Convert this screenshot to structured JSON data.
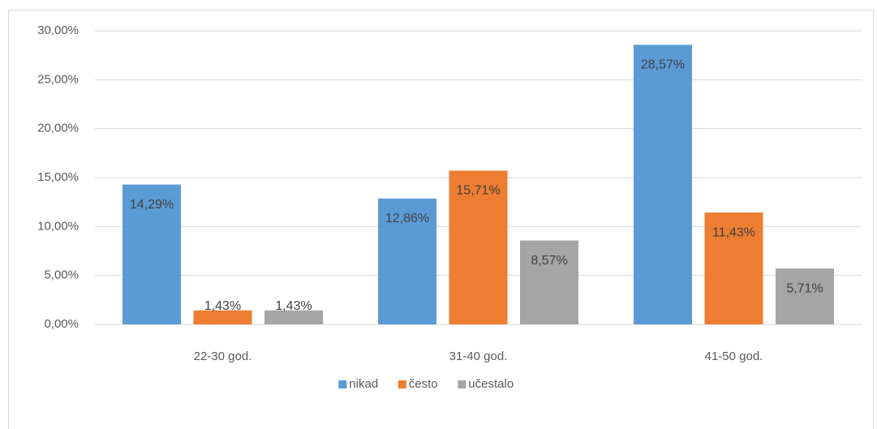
{
  "chart_data": {
    "type": "bar",
    "categories": [
      "22-30 god.",
      "31-40 god.",
      "41-50 god."
    ],
    "series": [
      {
        "name": "nikad",
        "color": "#5b9bd5",
        "values": [
          14.29,
          12.86,
          28.57
        ],
        "value_labels": [
          "14,29%",
          "12,86%",
          "28,57%"
        ]
      },
      {
        "name": "često",
        "color": "#ed7d31",
        "values": [
          1.43,
          15.71,
          11.43
        ],
        "value_labels": [
          "1,43%",
          "15,71%",
          "11,43%"
        ]
      },
      {
        "name": "učestalo",
        "color": "#a5a5a5",
        "values": [
          1.43,
          8.57,
          5.71
        ],
        "value_labels": [
          "1,43%",
          "8,57%",
          "5,71%"
        ]
      }
    ],
    "ylim": [
      0,
      30
    ],
    "yticks": [
      {
        "value": 0,
        "label": "0,00%"
      },
      {
        "value": 5,
        "label": "5,00%"
      },
      {
        "value": 10,
        "label": "10,00%"
      },
      {
        "value": 15,
        "label": "15,00%"
      },
      {
        "value": 20,
        "label": "20,00%"
      },
      {
        "value": 25,
        "label": "25,00%"
      },
      {
        "value": 30,
        "label": "30,00%"
      }
    ],
    "grid": true,
    "legend": "bottom"
  }
}
